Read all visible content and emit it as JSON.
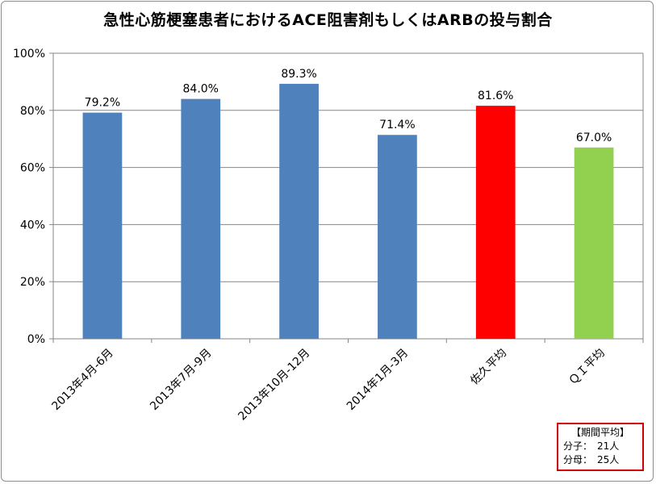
{
  "chart_data": {
    "type": "bar",
    "title": "急性心筋梗塞患者におけるACE阻害剤もしくはARBの投与割合",
    "categories": [
      "2013年4月-6月",
      "2013年7月-9月",
      "2013年10月-12月",
      "2014年1月-3月",
      "佐久平均",
      "ＱＩ平均"
    ],
    "values": [
      79.2,
      84.0,
      89.3,
      71.4,
      81.6,
      67.0
    ],
    "data_labels": [
      "79.2%",
      "84.0%",
      "89.3%",
      "71.4%",
      "81.6%",
      "67.0%"
    ],
    "bar_colors": [
      "#4f81bd",
      "#4f81bd",
      "#4f81bd",
      "#4f81bd",
      "#ff0000",
      "#92d050"
    ],
    "y_ticks": [
      "0%",
      "20%",
      "40%",
      "60%",
      "80%",
      "100%"
    ],
    "ylim": [
      0,
      100
    ],
    "grid": true,
    "legend": "none"
  },
  "info_box": {
    "header": "【期間平均】",
    "numerator": "分子：　21人",
    "denominator": "分母：　25人"
  }
}
